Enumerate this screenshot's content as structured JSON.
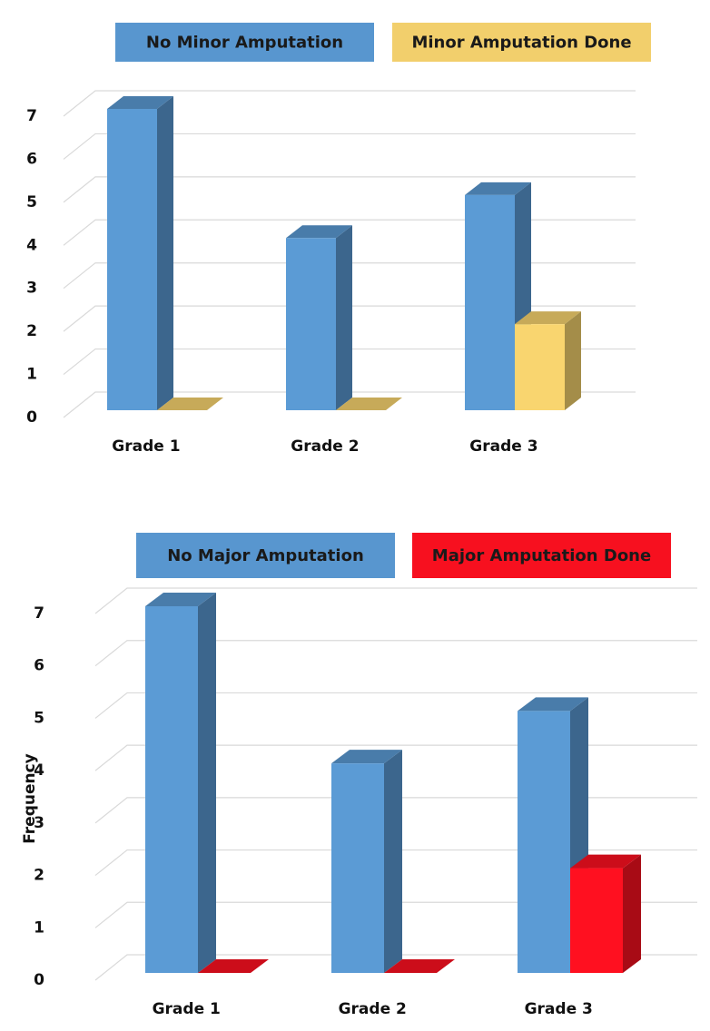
{
  "chart_data": [
    {
      "type": "bar3d",
      "categories": [
        "Grade 1",
        "Grade 2",
        "Grade 3"
      ],
      "series": [
        {
          "name": "No Minor Amputation",
          "color": "#5b9bd5",
          "values": [
            7,
            4,
            5
          ]
        },
        {
          "name": "Minor Amputation Done",
          "color": "#f9d56f",
          "values": [
            0,
            0,
            2
          ]
        }
      ],
      "ylim": [
        0,
        7
      ],
      "yticks": [
        0,
        1,
        2,
        3,
        4,
        5,
        6,
        7
      ],
      "grid": true
    },
    {
      "type": "bar3d",
      "ylabel": "Frequency",
      "categories": [
        "Grade 1",
        "Grade 2",
        "Grade 3"
      ],
      "series": [
        {
          "name": "No Major Amputation",
          "color": "#5b9bd5",
          "values": [
            7,
            4,
            5
          ]
        },
        {
          "name": "Major Amputation Done",
          "color": "#ff1020",
          "values": [
            0,
            0,
            2
          ]
        }
      ],
      "ylim": [
        0,
        7
      ],
      "yticks": [
        0,
        1,
        2,
        3,
        4,
        5,
        6,
        7
      ],
      "grid": true
    }
  ]
}
